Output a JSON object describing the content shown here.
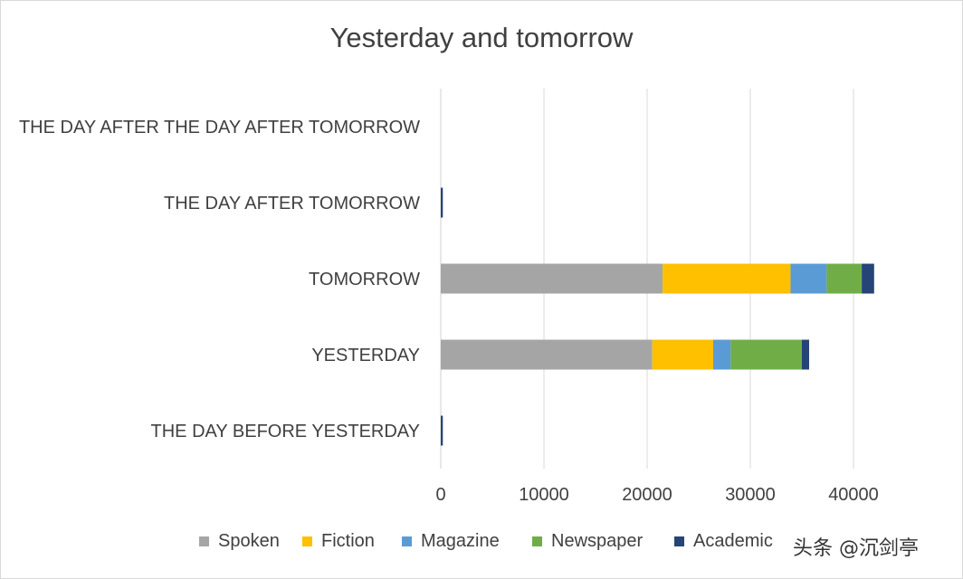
{
  "chart_data": {
    "type": "bar",
    "orientation": "horizontal",
    "stacked": true,
    "title": "Yesterday and tomorrow",
    "categories": [
      "THE DAY BEFORE YESTERDAY",
      "YESTERDAY",
      "TOMORROW",
      "THE DAY AFTER TOMORROW",
      "THE DAY AFTER THE DAY AFTER TOMORROW"
    ],
    "series": [
      {
        "name": "Spoken",
        "color": "#a5a5a5",
        "values": [
          0,
          20500,
          21500,
          0,
          0
        ]
      },
      {
        "name": "Fiction",
        "color": "#ffc000",
        "values": [
          0,
          5900,
          12400,
          0,
          0
        ]
      },
      {
        "name": "Magazine",
        "color": "#5b9bd5",
        "values": [
          0,
          1700,
          3500,
          0,
          0
        ]
      },
      {
        "name": "Newspaper",
        "color": "#70ad47",
        "values": [
          0,
          6900,
          3400,
          0,
          0
        ]
      },
      {
        "name": "Academic",
        "color": "#264478",
        "values": [
          200,
          700,
          1200,
          200,
          0
        ]
      }
    ],
    "xlim": [
      0,
      45000
    ],
    "xticks": [
      "0",
      "10000",
      "20000",
      "30000",
      "40000"
    ],
    "grid": "vertical",
    "legend_position": "bottom"
  },
  "watermark": "头条 @沉剑亭"
}
